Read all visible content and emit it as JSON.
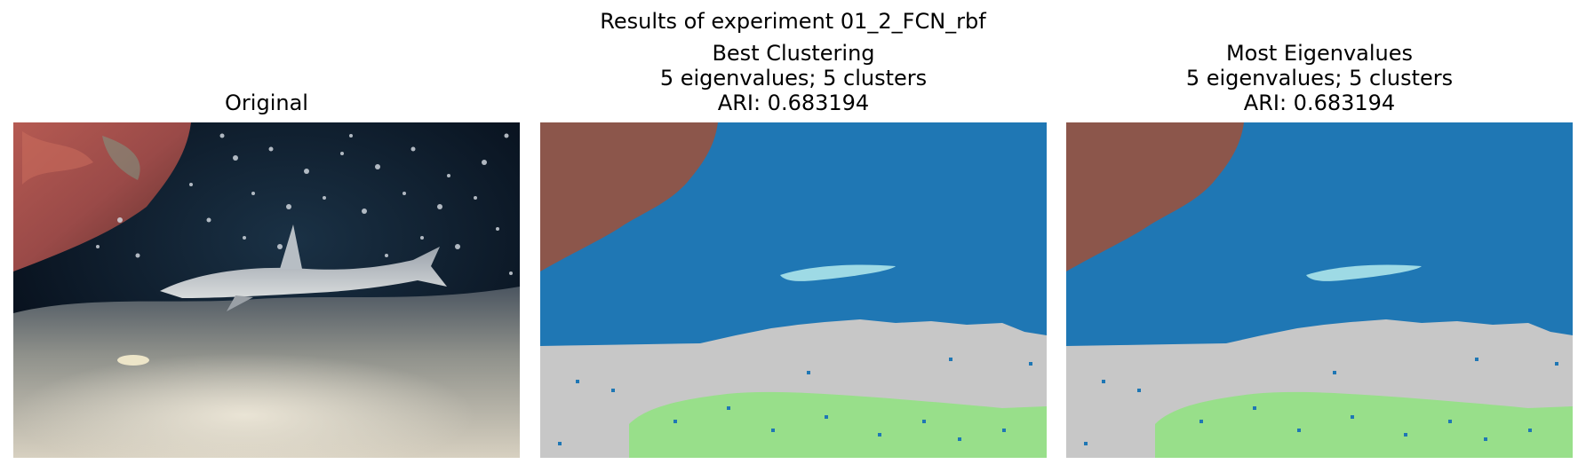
{
  "figure": {
    "suptitle": "Results of experiment 01_2_FCN_rbf"
  },
  "panels": [
    {
      "title_lines": [
        "Original"
      ]
    },
    {
      "title_lines": [
        "Best Clustering",
        "5 eigenvalues; 5 clusters",
        "ARI: 0.683194"
      ]
    },
    {
      "title_lines": [
        "Most Eigenvalues",
        "5 eigenvalues; 5 clusters",
        "ARI: 0.683194"
      ]
    }
  ],
  "cluster_colors": {
    "water": "#1f77b4",
    "rock": "#8c564b",
    "shark": "#9edae5",
    "sand": "#c7c7c7",
    "lit_sand": "#98df8a"
  }
}
